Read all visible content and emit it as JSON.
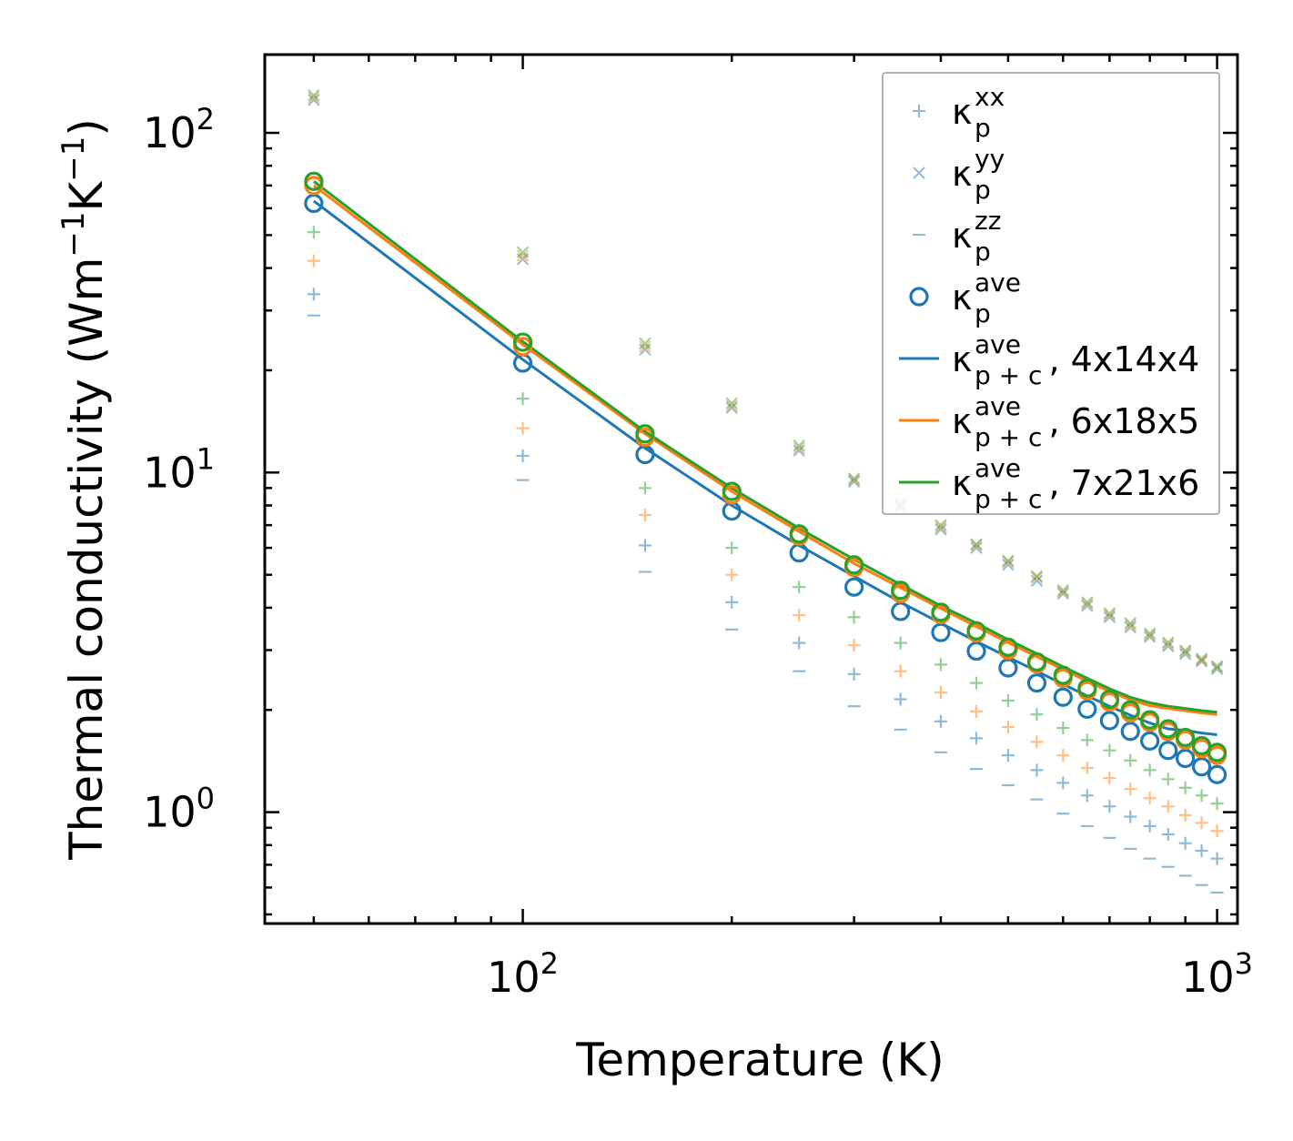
{
  "chart_data": {
    "type": "scatter",
    "xlabel": "Temperature (K)",
    "ylabel": "Thermal conductivity (Wm",
    "ylabel_parts": [
      "Thermal conductivity (Wm",
      "−1",
      "K",
      "−1",
      ")"
    ],
    "xscale": "log",
    "yscale": "log",
    "xlim": [
      42.5,
      1070
    ],
    "ylim": [
      0.47,
      170
    ],
    "x_ticks": [
      {
        "value": 100,
        "base": "10",
        "exp": "2"
      },
      {
        "value": 1000,
        "base": "10",
        "exp": "3"
      }
    ],
    "y_ticks": [
      {
        "value": 1,
        "base": "10",
        "exp": "0"
      },
      {
        "value": 10,
        "base": "10",
        "exp": "1"
      },
      {
        "value": 100,
        "base": "10",
        "exp": "2"
      }
    ],
    "x": [
      50,
      100,
      150,
      200,
      250,
      300,
      350,
      400,
      450,
      500,
      550,
      600,
      650,
      700,
      750,
      800,
      850,
      900,
      950,
      1000
    ],
    "series": [
      {
        "name": "4x14x4",
        "color": "#1f77b4",
        "k_xx": [
          33.5,
          11.2,
          6.1,
          4.15,
          3.15,
          2.55,
          2.15,
          1.85,
          1.65,
          1.47,
          1.33,
          1.22,
          1.12,
          1.04,
          0.97,
          0.91,
          0.86,
          0.81,
          0.77,
          0.73
        ],
        "k_yy": [
          125,
          42.5,
          23,
          15.5,
          11.6,
          9.4,
          7.9,
          6.8,
          6.0,
          5.35,
          4.8,
          4.4,
          4.05,
          3.75,
          3.5,
          3.28,
          3.08,
          2.92,
          2.78,
          2.64
        ],
        "k_zz": [
          29,
          9.5,
          5.1,
          3.45,
          2.6,
          2.05,
          1.75,
          1.5,
          1.34,
          1.2,
          1.09,
          0.99,
          0.91,
          0.84,
          0.78,
          0.73,
          0.69,
          0.65,
          0.61,
          0.58
        ],
        "k_ave_points": [
          62,
          21,
          11.3,
          7.7,
          5.8,
          4.6,
          3.9,
          3.38,
          2.98,
          2.66,
          2.4,
          2.18,
          2.01,
          1.86,
          1.73,
          1.62,
          1.52,
          1.44,
          1.36,
          1.29
        ],
        "k_ave_line": [
          63,
          21.5,
          11.8,
          8.0,
          6.1,
          4.95,
          4.15,
          3.6,
          3.18,
          2.86,
          2.6,
          2.38,
          2.2,
          2.05,
          1.93,
          1.83,
          1.76,
          1.74,
          1.71,
          1.69
        ]
      },
      {
        "name": "6x18x5",
        "color": "#ff7f0e",
        "k_xx": [
          42,
          13.5,
          7.5,
          5.0,
          3.8,
          3.1,
          2.6,
          2.25,
          1.98,
          1.78,
          1.61,
          1.47,
          1.35,
          1.26,
          1.17,
          1.1,
          1.04,
          0.98,
          0.93,
          0.88
        ],
        "k_yy": [
          127,
          43.5,
          23.5,
          15.7,
          11.8,
          9.5,
          8.0,
          6.9,
          6.1,
          5.45,
          4.9,
          4.45,
          4.1,
          3.8,
          3.55,
          3.32,
          3.12,
          2.96,
          2.8,
          2.67
        ],
        "k_zz": [],
        "k_ave_points": [
          70,
          23.5,
          12.7,
          8.6,
          6.5,
          5.25,
          4.4,
          3.82,
          3.37,
          3.0,
          2.73,
          2.48,
          2.28,
          2.11,
          1.96,
          1.84,
          1.73,
          1.63,
          1.54,
          1.47
        ],
        "k_ave_line": [
          70,
          23.8,
          13.0,
          8.8,
          6.7,
          5.4,
          4.58,
          3.98,
          3.52,
          3.16,
          2.87,
          2.63,
          2.43,
          2.27,
          2.14,
          2.06,
          2.02,
          1.99,
          1.96,
          1.94
        ]
      },
      {
        "name": "7x21x6",
        "color": "#2ca02c",
        "k_xx": [
          51,
          16.5,
          9.0,
          6.0,
          4.6,
          3.75,
          3.15,
          2.72,
          2.4,
          2.13,
          1.94,
          1.77,
          1.63,
          1.52,
          1.42,
          1.33,
          1.25,
          1.18,
          1.12,
          1.06
        ],
        "k_yy": [
          129,
          44.5,
          24,
          16,
          12,
          9.6,
          8.1,
          7.0,
          6.15,
          5.5,
          4.95,
          4.5,
          4.15,
          3.85,
          3.6,
          3.36,
          3.16,
          2.99,
          2.83,
          2.69
        ],
        "k_zz": [],
        "k_ave_points": [
          72,
          24.2,
          13.0,
          8.8,
          6.6,
          5.35,
          4.5,
          3.88,
          3.42,
          3.06,
          2.77,
          2.53,
          2.32,
          2.15,
          2.0,
          1.87,
          1.76,
          1.66,
          1.57,
          1.5
        ],
        "k_ave_line": [
          72,
          24.3,
          13.2,
          9.0,
          6.85,
          5.55,
          4.68,
          4.05,
          3.6,
          3.22,
          2.93,
          2.68,
          2.48,
          2.31,
          2.18,
          2.1,
          2.05,
          2.02,
          1.99,
          1.97
        ]
      }
    ],
    "legend": {
      "position": "top-right",
      "entries": [
        {
          "kind": "plus",
          "sym": "κ",
          "sub": "p",
          "sup": "xx",
          "suffix": ""
        },
        {
          "kind": "cross",
          "sym": "κ",
          "sub": "p",
          "sup": "yy",
          "suffix": ""
        },
        {
          "kind": "dash",
          "sym": "κ",
          "sub": "p",
          "sup": "zz",
          "suffix": ""
        },
        {
          "kind": "circle",
          "sym": "κ",
          "sub": "p",
          "sup": "ave",
          "suffix": ""
        },
        {
          "kind": "line",
          "color": "#1f77b4",
          "sym": "κ",
          "sub": "p + c",
          "sup": "ave",
          "suffix": ", 4x14x4"
        },
        {
          "kind": "line",
          "color": "#ff7f0e",
          "sym": "κ",
          "sub": "p + c",
          "sup": "ave",
          "suffix": ", 6x18x5"
        },
        {
          "kind": "line",
          "color": "#2ca02c",
          "sym": "κ",
          "sub": "p + c",
          "sup": "ave",
          "suffix": ", 7x21x6"
        }
      ]
    }
  }
}
